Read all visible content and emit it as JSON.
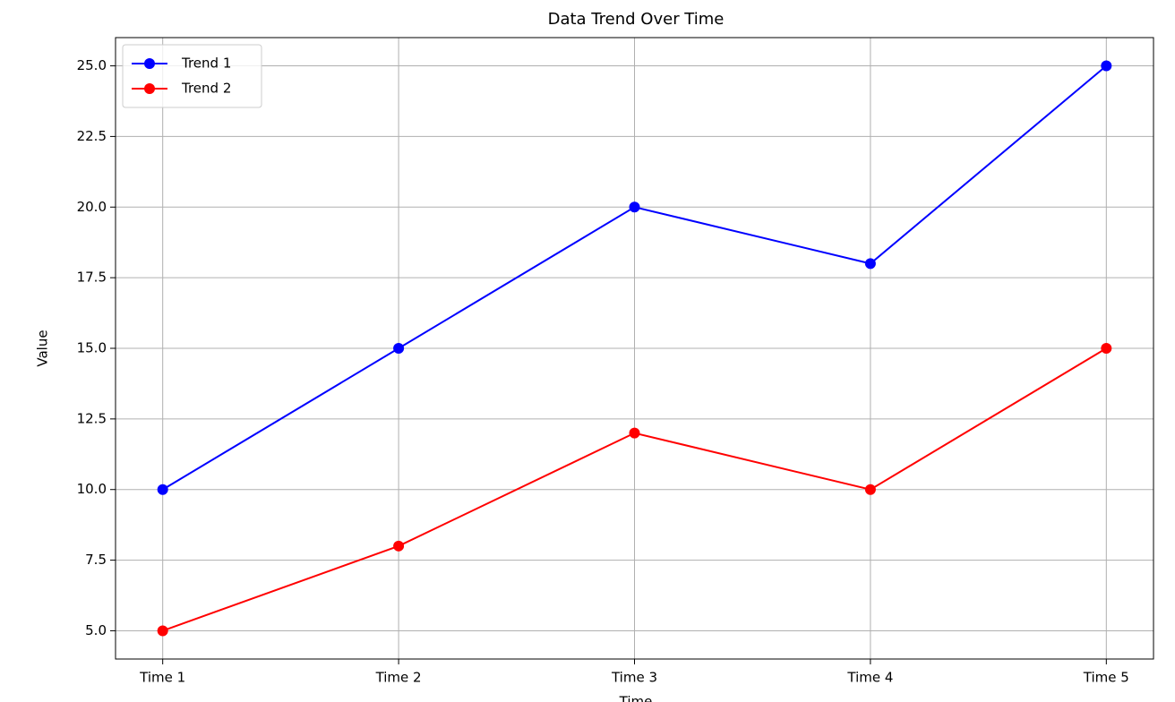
{
  "chart_data": {
    "type": "line",
    "title": "Data Trend Over Time",
    "x_label": "Time",
    "y_label": "Value",
    "categories": [
      "Time 1",
      "Time 2",
      "Time 3",
      "Time 4",
      "Time 5"
    ],
    "series": [
      {
        "name": "Trend 1",
        "color": "#0000ff",
        "values": [
          10,
          15,
          20,
          18,
          25
        ]
      },
      {
        "name": "Trend 2",
        "color": "#ff0000",
        "values": [
          5,
          8,
          12,
          10,
          15
        ]
      }
    ],
    "ylim": [
      4,
      26
    ],
    "yticks": [
      {
        "value": 5,
        "label": "5.0"
      },
      7.5,
      {
        "value": 10,
        "label": "10.0"
      },
      12.5,
      {
        "value": 15,
        "label": "15.0"
      },
      17.5,
      {
        "value": 20,
        "label": "20.0"
      },
      22.5,
      {
        "value": 25,
        "label": "25.0"
      }
    ],
    "grid": true,
    "legend": "upper-left"
  }
}
